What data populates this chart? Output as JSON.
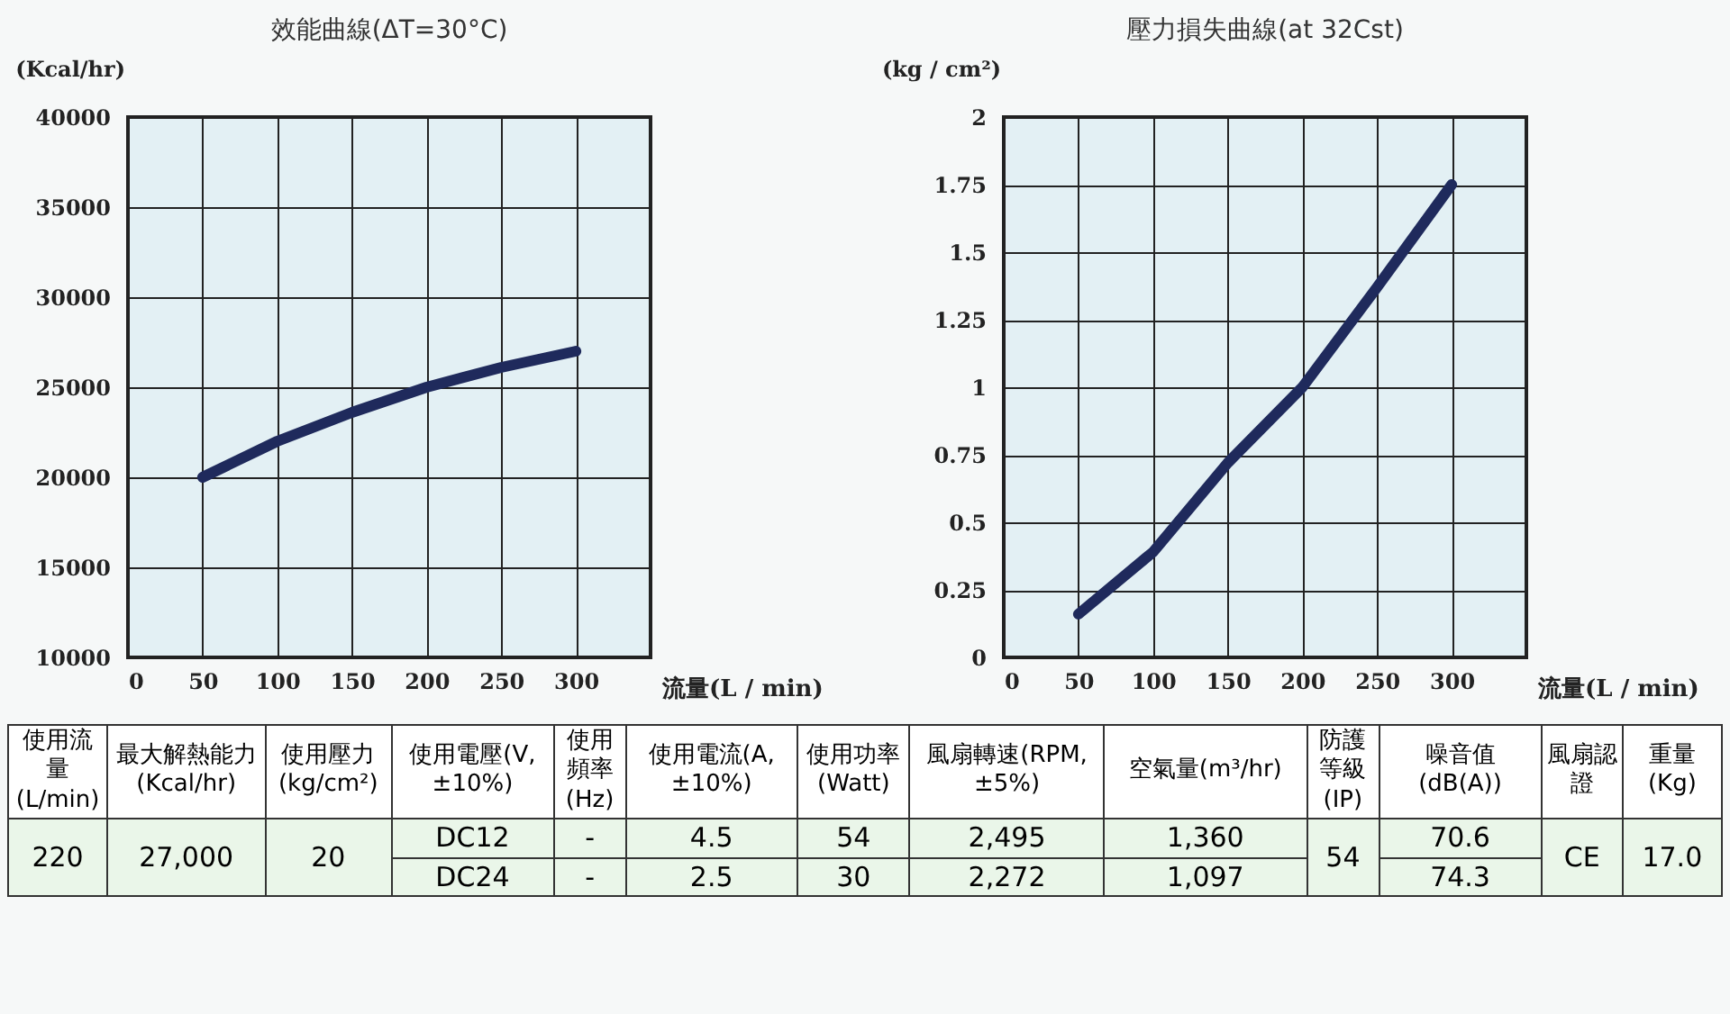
{
  "chart_data": [
    {
      "type": "line",
      "title": "效能曲線(ΔT=30°C)",
      "ylabel": "(Kcal/hr)",
      "xlabel": "流量(L / min)",
      "x": [
        50,
        100,
        150,
        200,
        250,
        300
      ],
      "values": [
        20000,
        22000,
        23600,
        25000,
        26100,
        27000
      ],
      "color": "#1f2a5c",
      "xlim": [
        0,
        350
      ],
      "xticks": [
        0,
        50,
        100,
        150,
        200,
        250,
        300
      ],
      "ylim": [
        10000,
        40000
      ],
      "yticks": [
        10000,
        15000,
        20000,
        25000,
        30000,
        35000,
        40000
      ],
      "grid": true
    },
    {
      "type": "line",
      "title": "壓力損失曲線(at 32Cst)",
      "ylabel": "(kg / cm²)",
      "xlabel": "流量(L / min)",
      "x": [
        50,
        100,
        150,
        200,
        250,
        300
      ],
      "values": [
        0.16,
        0.39,
        0.72,
        1.0,
        1.37,
        1.75
      ],
      "color": "#1f2a5c",
      "xlim": [
        0,
        350
      ],
      "xticks": [
        0,
        50,
        100,
        150,
        200,
        250,
        300
      ],
      "ylim": [
        0,
        2
      ],
      "yticks": [
        0,
        0.25,
        0.5,
        0.75,
        1,
        1.25,
        1.5,
        1.75,
        2
      ],
      "grid": true
    },
    {
      "type": "other",
      "annotations": [
        "使用流量(L/min)",
        "最大解熱能力(Kcal/hr)",
        "使用壓力(kg/cm²)",
        "使用電壓(V,±10%)",
        "使用頻率(Hz)",
        "使用電流(A,±10%)",
        "使用功率(Watt)",
        "風扇轉速(RPM,±5%)",
        "空氣量(m³/hr)",
        "防護等級(IP)",
        "噪音值(dB(A))",
        "風扇認證",
        "重量(Kg)",
        "220",
        "27,000",
        "20",
        "DC12",
        "-",
        "4.5",
        "54",
        "2,495",
        "1,360",
        "54",
        "70.6",
        "CE",
        "17.0",
        "DC24",
        "-",
        "2.5",
        "30",
        "2,272",
        "1,097",
        "74.3"
      ]
    }
  ]
}
